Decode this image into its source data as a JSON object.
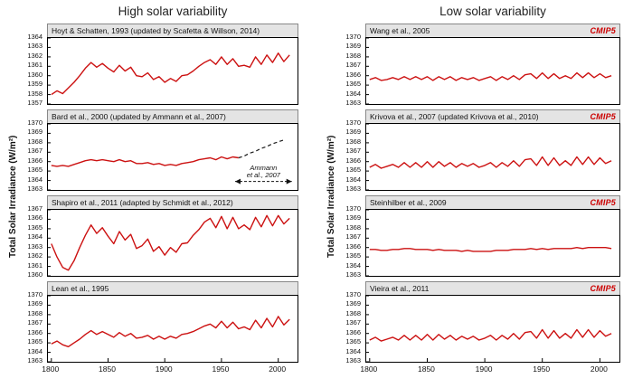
{
  "figure": {
    "columns": [
      {
        "title": "High solar variability"
      },
      {
        "title": "Low solar variability"
      }
    ],
    "y_axis_label": "Total Solar Irradiance (W/m²)"
  },
  "colors": {
    "line": "#cc1111",
    "badge": "#cc0000",
    "dashed": "#1a1a1a"
  },
  "chart_data": [
    {
      "type": "line",
      "title": "Hoyt & Schatten, 1993 (updated by Scafetta & Willson, 2014)",
      "variability": "high",
      "xlim": [
        1797,
        2017
      ],
      "ylim": [
        1357,
        1364
      ],
      "xticks": [
        1800,
        1850,
        1900,
        1950,
        2000
      ],
      "x_start": 1800,
      "x_step": 5,
      "show_xticks": false,
      "values": [
        1358.0,
        1358.4,
        1358.1,
        1358.7,
        1359.3,
        1360.0,
        1360.8,
        1361.4,
        1360.9,
        1361.3,
        1360.8,
        1360.4,
        1361.1,
        1360.5,
        1360.9,
        1360.0,
        1359.9,
        1360.3,
        1359.6,
        1359.9,
        1359.3,
        1359.7,
        1359.4,
        1360.0,
        1360.1,
        1360.5,
        1361.0,
        1361.4,
        1361.7,
        1361.2,
        1362.0,
        1361.2,
        1361.8,
        1361.0,
        1361.1,
        1360.9,
        1362.0,
        1361.2,
        1362.2,
        1361.4,
        1362.4,
        1361.5,
        1362.2
      ]
    },
    {
      "type": "line",
      "title": "Bard et al., 2000 (updated by Ammann et al., 2007)",
      "variability": "high",
      "xlim": [
        1797,
        2017
      ],
      "ylim": [
        1363,
        1370
      ],
      "xticks": [
        1800,
        1850,
        1900,
        1950,
        2000
      ],
      "x_start": 1800,
      "x_step": 5,
      "show_xticks": false,
      "dash_index": 33,
      "annotation": {
        "lines": [
          "Ammann",
          "et al., 2007"
        ],
        "x1": 1962,
        "x2": 2012,
        "y_text": 1365.1,
        "y_arrow": 1363.9
      },
      "values": [
        1365.6,
        1365.5,
        1365.6,
        1365.5,
        1365.7,
        1365.9,
        1366.1,
        1366.2,
        1366.1,
        1366.2,
        1366.1,
        1366.0,
        1366.2,
        1366.0,
        1366.1,
        1365.8,
        1365.8,
        1365.9,
        1365.7,
        1365.8,
        1365.6,
        1365.7,
        1365.6,
        1365.8,
        1365.9,
        1366.0,
        1366.2,
        1366.3,
        1366.4,
        1366.2,
        1366.5,
        1366.3,
        1366.5,
        1366.4,
        1366.6,
        1366.9,
        1367.1,
        1367.4,
        1367.6,
        1367.9,
        1368.1,
        1368.3
      ]
    },
    {
      "type": "line",
      "title": "Shapiro et al., 2011 (adapted by Schmidt et al., 2012)",
      "variability": "high",
      "xlim": [
        1797,
        2017
      ],
      "ylim": [
        1360,
        1367
      ],
      "xticks": [
        1800,
        1850,
        1900,
        1950,
        2000
      ],
      "x_start": 1800,
      "x_step": 5,
      "show_xticks": false,
      "values": [
        1363.4,
        1362.0,
        1360.9,
        1360.6,
        1361.6,
        1363.0,
        1364.3,
        1365.4,
        1364.5,
        1365.1,
        1364.2,
        1363.4,
        1364.7,
        1363.8,
        1364.4,
        1362.9,
        1363.2,
        1363.9,
        1362.6,
        1363.1,
        1362.2,
        1363.0,
        1362.5,
        1363.4,
        1363.5,
        1364.3,
        1364.9,
        1365.7,
        1366.1,
        1365.1,
        1366.3,
        1365.0,
        1366.2,
        1365.0,
        1365.4,
        1364.9,
        1366.2,
        1365.2,
        1366.4,
        1365.3,
        1366.4,
        1365.5,
        1366.1
      ]
    },
    {
      "type": "line",
      "title": "Lean et al., 1995",
      "variability": "high",
      "xlim": [
        1797,
        2017
      ],
      "ylim": [
        1363,
        1370
      ],
      "xticks": [
        1800,
        1850,
        1900,
        1950,
        2000
      ],
      "x_start": 1800,
      "x_step": 5,
      "show_xticks": true,
      "values": [
        1364.9,
        1365.2,
        1364.8,
        1364.6,
        1365.0,
        1365.4,
        1365.9,
        1366.3,
        1365.9,
        1366.2,
        1365.9,
        1365.6,
        1366.1,
        1365.7,
        1366.0,
        1365.5,
        1365.6,
        1365.8,
        1365.4,
        1365.7,
        1365.4,
        1365.7,
        1365.5,
        1365.9,
        1366.0,
        1366.2,
        1366.5,
        1366.8,
        1367.0,
        1366.6,
        1367.3,
        1366.6,
        1367.2,
        1366.5,
        1366.7,
        1366.4,
        1367.4,
        1366.6,
        1367.6,
        1366.7,
        1367.8,
        1366.9,
        1367.5
      ]
    },
    {
      "type": "line",
      "title": "Wang et al., 2005",
      "badge": "CMIP5",
      "variability": "low",
      "xlim": [
        1797,
        2017
      ],
      "ylim": [
        1363,
        1370
      ],
      "xticks": [
        1800,
        1850,
        1900,
        1950,
        2000
      ],
      "x_start": 1800,
      "x_step": 5,
      "show_xticks": false,
      "values": [
        1365.6,
        1365.8,
        1365.5,
        1365.6,
        1365.8,
        1365.6,
        1365.9,
        1365.6,
        1365.9,
        1365.6,
        1365.9,
        1365.5,
        1365.9,
        1365.6,
        1365.9,
        1365.5,
        1365.8,
        1365.6,
        1365.8,
        1365.5,
        1365.7,
        1365.9,
        1365.5,
        1365.9,
        1365.6,
        1366.0,
        1365.6,
        1366.1,
        1366.2,
        1365.7,
        1366.3,
        1365.7,
        1366.2,
        1365.7,
        1366.0,
        1365.7,
        1366.3,
        1365.8,
        1366.3,
        1365.8,
        1366.2,
        1365.8,
        1366.0
      ]
    },
    {
      "type": "line",
      "title": "Krivova et al., 2007 (updated Krivova et al., 2010)",
      "badge": "CMIP5",
      "variability": "low",
      "xlim": [
        1797,
        2017
      ],
      "ylim": [
        1363,
        1370
      ],
      "xticks": [
        1800,
        1850,
        1900,
        1950,
        2000
      ],
      "x_start": 1800,
      "x_step": 5,
      "show_xticks": false,
      "values": [
        1365.4,
        1365.7,
        1365.3,
        1365.5,
        1365.7,
        1365.4,
        1365.9,
        1365.4,
        1365.9,
        1365.4,
        1366.0,
        1365.4,
        1366.0,
        1365.5,
        1365.9,
        1365.4,
        1365.8,
        1365.5,
        1365.8,
        1365.4,
        1365.6,
        1365.9,
        1365.4,
        1365.9,
        1365.5,
        1366.1,
        1365.5,
        1366.2,
        1366.3,
        1365.6,
        1366.5,
        1365.6,
        1366.4,
        1365.6,
        1366.1,
        1365.6,
        1366.5,
        1365.7,
        1366.5,
        1365.7,
        1366.4,
        1365.8,
        1366.1
      ]
    },
    {
      "type": "line",
      "title": "Steinhilber et al., 2009",
      "badge": "CMIP5",
      "variability": "low",
      "xlim": [
        1797,
        2017
      ],
      "ylim": [
        1363,
        1370
      ],
      "xticks": [
        1800,
        1850,
        1900,
        1950,
        2000
      ],
      "x_start": 1800,
      "x_step": 5,
      "show_xticks": false,
      "values": [
        1365.8,
        1365.8,
        1365.7,
        1365.7,
        1365.8,
        1365.8,
        1365.9,
        1365.9,
        1365.8,
        1365.8,
        1365.8,
        1365.7,
        1365.8,
        1365.7,
        1365.7,
        1365.7,
        1365.6,
        1365.7,
        1365.6,
        1365.6,
        1365.6,
        1365.6,
        1365.7,
        1365.7,
        1365.7,
        1365.8,
        1365.8,
        1365.8,
        1365.9,
        1365.8,
        1365.9,
        1365.8,
        1365.9,
        1365.9,
        1365.9,
        1365.9,
        1366.0,
        1365.9,
        1366.0,
        1366.0,
        1366.0,
        1366.0,
        1365.9
      ]
    },
    {
      "type": "line",
      "title": "Vieira et al., 2011",
      "badge": "CMIP5",
      "variability": "low",
      "xlim": [
        1797,
        2017
      ],
      "ylim": [
        1363,
        1370
      ],
      "xticks": [
        1800,
        1850,
        1900,
        1950,
        2000
      ],
      "x_start": 1800,
      "x_step": 5,
      "show_xticks": true,
      "values": [
        1365.3,
        1365.6,
        1365.2,
        1365.4,
        1365.6,
        1365.3,
        1365.8,
        1365.3,
        1365.8,
        1365.3,
        1365.9,
        1365.3,
        1365.9,
        1365.4,
        1365.8,
        1365.3,
        1365.7,
        1365.4,
        1365.7,
        1365.3,
        1365.5,
        1365.8,
        1365.3,
        1365.8,
        1365.4,
        1366.0,
        1365.4,
        1366.1,
        1366.2,
        1365.5,
        1366.4,
        1365.5,
        1366.3,
        1365.5,
        1366.0,
        1365.5,
        1366.4,
        1365.6,
        1366.4,
        1365.6,
        1366.3,
        1365.7,
        1366.0
      ]
    }
  ]
}
